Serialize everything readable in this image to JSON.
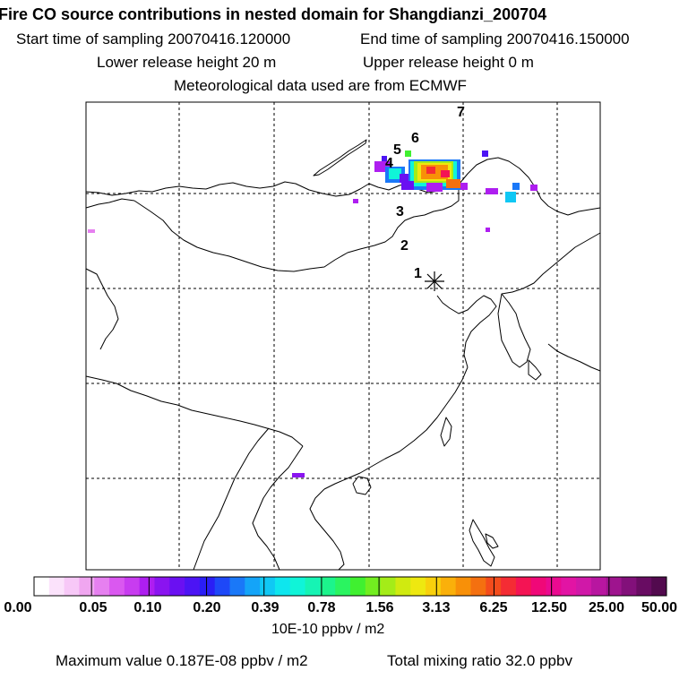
{
  "header": {
    "title": "Fire CO source contributions in nested domain for Shangdianzi_200704",
    "start_time": "Start time of sampling 20070416.120000",
    "end_time": "End time of sampling 20070416.150000",
    "lower_release": "Lower release height   20 m",
    "upper_release": "Upper release height    0 m",
    "meteo": "Meteorological data used are from ECMWF"
  },
  "map": {
    "receptor_marker": "Shangdianzi receptor",
    "trajectory_labels": [
      "1",
      "2",
      "3",
      "4",
      "5",
      "6",
      "7"
    ]
  },
  "colorbar": {
    "colors": [
      "#ffffff",
      "#fbe2fb",
      "#f7c8f7",
      "#f0a6f0",
      "#e680f0",
      "#da58f0",
      "#c83cf0",
      "#ae1ef0",
      "#8a14f0",
      "#6a10f2",
      "#4c14f4",
      "#2a1ef6",
      "#1e48f8",
      "#1a78f8",
      "#14a4f8",
      "#10c8f4",
      "#0ee6ee",
      "#10f4d8",
      "#16f4b4",
      "#1cf48c",
      "#2af460",
      "#40f030",
      "#72ee20",
      "#a4ec18",
      "#d0ea10",
      "#eee810",
      "#f8d00c",
      "#fab00a",
      "#f89008",
      "#f47010",
      "#f44c1c",
      "#f42c34",
      "#f41454",
      "#f00878",
      "#ea0a90",
      "#e214a4",
      "#d018a8",
      "#b816a0",
      "#9e148e",
      "#82107a",
      "#680c62",
      "#520a4e"
    ],
    "labels": [
      "0.00",
      "0.05",
      "0.10",
      "0.20",
      "0.39",
      "0.78",
      "1.56",
      "3.13",
      "6.25",
      "12.50",
      "25.00",
      "50.00"
    ],
    "units": "10E-10 ppbv / m2"
  },
  "footer": {
    "max_value": "Maximum value  0.187E-08 ppbv / m2",
    "total_mixing": "Total mixing ratio       32.0 ppbv"
  }
}
